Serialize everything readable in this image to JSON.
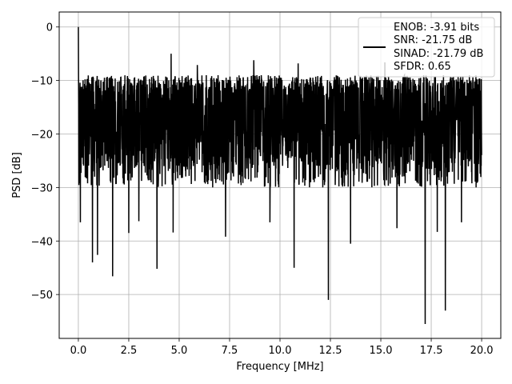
{
  "chart_data": {
    "type": "line",
    "title": "",
    "xlabel": "Frequency [MHz]",
    "ylabel": "PSD [dB]",
    "xlim": [
      -0.95,
      20.95
    ],
    "ylim": [
      -58.2,
      2.8
    ],
    "x_ticks": [
      0.0,
      2.5,
      5.0,
      7.5,
      10.0,
      12.5,
      15.0,
      17.5,
      20.0
    ],
    "x_tick_labels": [
      "0.0",
      "2.5",
      "5.0",
      "7.5",
      "10.0",
      "12.5",
      "15.0",
      "17.5",
      "20.0"
    ],
    "y_ticks": [
      0,
      -10,
      -20,
      -30,
      -40,
      -50
    ],
    "y_tick_labels": [
      "0",
      "−10",
      "−20",
      "−30",
      "−40",
      "−50"
    ],
    "grid": true,
    "legend": {
      "position": "top-right",
      "line_color": "#000000",
      "entries": [
        "ENOB: -3.91 bits",
        "SNR: -21.75 dB",
        "SINAD: -21.79 dB",
        "SFDR: 0.65"
      ]
    },
    "series": [
      {
        "color": "#000000",
        "x_range": [
          0.0,
          20.0
        ],
        "noise_band_db": [
          -26,
          -9
        ],
        "peaks": [
          {
            "x": 0.0,
            "y": 0.0
          },
          {
            "x": 4.6,
            "y": -5.0
          },
          {
            "x": 8.7,
            "y": -6.2
          },
          {
            "x": 15.2,
            "y": -6.6
          },
          {
            "x": 10.9,
            "y": -6.8
          },
          {
            "x": 5.9,
            "y": -7.1
          }
        ],
        "dips": [
          {
            "x": 0.1,
            "y": -36.5
          },
          {
            "x": 0.7,
            "y": -44.0
          },
          {
            "x": 0.95,
            "y": -42.6
          },
          {
            "x": 1.7,
            "y": -46.6
          },
          {
            "x": 2.5,
            "y": -38.5
          },
          {
            "x": 3.0,
            "y": -36.3
          },
          {
            "x": 3.9,
            "y": -45.2
          },
          {
            "x": 4.7,
            "y": -38.4
          },
          {
            "x": 7.3,
            "y": -39.2
          },
          {
            "x": 9.5,
            "y": -36.5
          },
          {
            "x": 10.7,
            "y": -45.0
          },
          {
            "x": 12.4,
            "y": -51.0
          },
          {
            "x": 13.5,
            "y": -40.5
          },
          {
            "x": 15.8,
            "y": -37.6
          },
          {
            "x": 17.2,
            "y": -55.5
          },
          {
            "x": 17.8,
            "y": -38.3
          },
          {
            "x": 18.2,
            "y": -53.0
          },
          {
            "x": 19.0,
            "y": -36.5
          }
        ]
      }
    ]
  }
}
